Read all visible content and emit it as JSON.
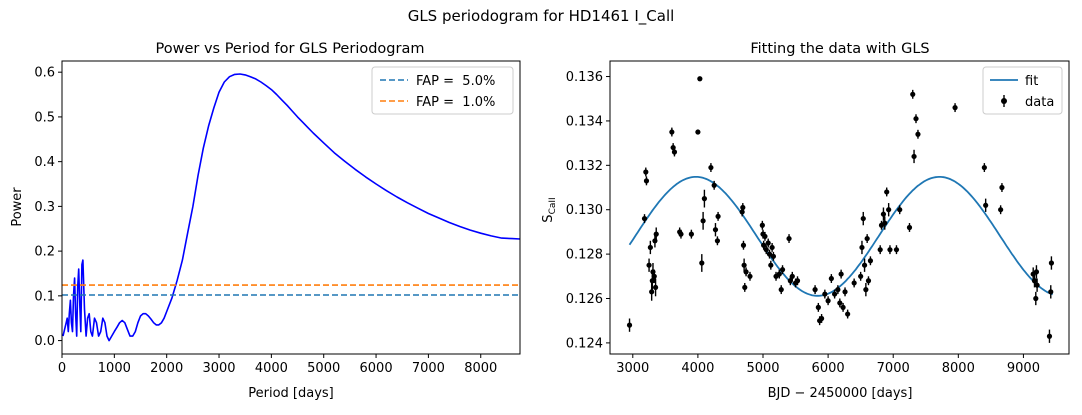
{
  "figure": {
    "suptitle": "GLS periodogram for HD1461 I_Call"
  },
  "chart_data": [
    {
      "type": "line",
      "title": "Power vs Period for GLS Periodogram",
      "xlabel": "Period [days]",
      "ylabel": "Power",
      "xlim": [
        0,
        8750
      ],
      "ylim": [
        -0.03,
        0.625
      ],
      "xticks": [
        0,
        1000,
        2000,
        3000,
        4000,
        5000,
        6000,
        7000,
        8000
      ],
      "yticks": [
        0.0,
        0.1,
        0.2,
        0.3,
        0.4,
        0.5,
        0.6
      ],
      "xtick_labels": [
        "0",
        "1000",
        "2000",
        "3000",
        "4000",
        "5000",
        "6000",
        "7000",
        "8000"
      ],
      "ytick_labels": [
        "0.0",
        "0.1",
        "0.2",
        "0.3",
        "0.4",
        "0.5",
        "0.6"
      ],
      "legend": "top-right",
      "series": [
        {
          "color": "#0000ff",
          "style": "solid",
          "x": [
            20,
            80,
            100,
            120,
            140,
            160,
            180,
            200,
            220,
            240,
            260,
            280,
            300,
            320,
            340,
            360,
            380,
            400,
            430,
            460,
            490,
            520,
            550,
            580,
            620,
            660,
            700,
            740,
            780,
            820,
            860,
            900,
            950,
            1000,
            1050,
            1100,
            1150,
            1200,
            1250,
            1300,
            1350,
            1400,
            1450,
            1500,
            1550,
            1600,
            1650,
            1700,
            1750,
            1800,
            1850,
            1900,
            1950,
            2000,
            2100,
            2200,
            2300,
            2400,
            2500,
            2600,
            2700,
            2800,
            2900,
            3000,
            3100,
            3200,
            3300,
            3400,
            3500,
            3600,
            3700,
            3800,
            3900,
            4000,
            4100,
            4200,
            4300,
            4400,
            4500,
            4600,
            4700,
            4800,
            5000,
            5200,
            5400,
            5600,
            5800,
            6000,
            6200,
            6400,
            6600,
            6800,
            7000,
            7200,
            7400,
            7600,
            7800,
            8000,
            8200,
            8400,
            8600,
            8750
          ],
          "values": [
            0.01,
            0.04,
            0.05,
            0.02,
            0.06,
            0.09,
            0.04,
            0.02,
            0.1,
            0.14,
            0.06,
            0.01,
            0.12,
            0.16,
            0.08,
            0.02,
            0.17,
            0.18,
            0.07,
            0.01,
            0.05,
            0.06,
            0.02,
            0.01,
            0.05,
            0.04,
            0.01,
            0.02,
            0.05,
            0.04,
            0.01,
            0.0,
            0.01,
            0.02,
            0.03,
            0.04,
            0.045,
            0.04,
            0.025,
            0.01,
            0.01,
            0.02,
            0.04,
            0.055,
            0.06,
            0.06,
            0.055,
            0.048,
            0.04,
            0.035,
            0.035,
            0.04,
            0.05,
            0.065,
            0.095,
            0.135,
            0.18,
            0.24,
            0.3,
            0.37,
            0.43,
            0.48,
            0.52,
            0.555,
            0.578,
            0.59,
            0.595,
            0.596,
            0.594,
            0.59,
            0.585,
            0.578,
            0.57,
            0.561,
            0.55,
            0.538,
            0.526,
            0.513,
            0.5,
            0.488,
            0.476,
            0.464,
            0.442,
            0.42,
            0.401,
            0.383,
            0.366,
            0.35,
            0.335,
            0.321,
            0.308,
            0.296,
            0.284,
            0.274,
            0.264,
            0.255,
            0.247,
            0.24,
            0.234,
            0.229,
            0.228,
            0.227
          ]
        },
        {
          "name": "FAP =  5.0%",
          "color": "#1f77b4",
          "style": "dashed",
          "x": [
            0,
            8750
          ],
          "values": [
            0.102,
            0.102
          ]
        },
        {
          "name": "FAP =  1.0%",
          "color": "#ff7f0e",
          "style": "dashed",
          "x": [
            0,
            8750
          ],
          "values": [
            0.124,
            0.124
          ]
        }
      ]
    },
    {
      "type": "scatter",
      "title": "Fitting the data with GLS",
      "xlabel": "BJD − 2450000 [days]",
      "ylabel_main": "S",
      "ylabel_sub": "CaII",
      "xlim": [
        2650,
        9700
      ],
      "ylim": [
        0.1235,
        0.1367
      ],
      "xticks": [
        3000,
        4000,
        5000,
        6000,
        7000,
        8000,
        9000
      ],
      "yticks": [
        0.124,
        0.126,
        0.128,
        0.13,
        0.132,
        0.134,
        0.136
      ],
      "xtick_labels": [
        "3000",
        "4000",
        "5000",
        "6000",
        "7000",
        "8000",
        "9000"
      ],
      "ytick_labels": [
        "0.124",
        "0.126",
        "0.128",
        "0.130",
        "0.132",
        "0.134",
        "0.136"
      ],
      "legend": "top-right",
      "fit": {
        "name": "fit",
        "color": "#1f77b4",
        "mean": 0.1288,
        "amplitude": 0.00268,
        "period_days": 3740,
        "phase_peak_x": 3970,
        "x_range": [
          2950,
          9450
        ]
      },
      "data": {
        "name": "data",
        "color": "#000000",
        "points": [
          [
            2950,
            0.1248,
            0.0003
          ],
          [
            3180,
            0.1296,
            0.0002
          ],
          [
            3200,
            0.1317,
            0.0002
          ],
          [
            3210,
            0.1313,
            0.0002
          ],
          [
            3250,
            0.1275,
            0.0003
          ],
          [
            3270,
            0.1283,
            0.0003
          ],
          [
            3290,
            0.1263,
            0.0004
          ],
          [
            3300,
            0.1268,
            0.0004
          ],
          [
            3310,
            0.1272,
            0.0004
          ],
          [
            3330,
            0.127,
            0.0003
          ],
          [
            3340,
            0.1286,
            0.0003
          ],
          [
            3350,
            0.1265,
            0.0004
          ],
          [
            3360,
            0.1289,
            0.0003
          ],
          [
            3600,
            0.1335,
            0.0002
          ],
          [
            3620,
            0.1328,
            0.0002
          ],
          [
            3640,
            0.1326,
            0.0002
          ],
          [
            3720,
            0.129,
            0.0002
          ],
          [
            3740,
            0.1289,
            0.0002
          ],
          [
            3900,
            0.1289,
            0.0002
          ],
          [
            4000,
            0.1335,
            0.0001
          ],
          [
            4030,
            0.1359,
            0.0001
          ],
          [
            4060,
            0.1276,
            0.0004
          ],
          [
            4080,
            0.1295,
            0.0004
          ],
          [
            4100,
            0.1305,
            0.0004
          ],
          [
            4200,
            0.1319,
            0.0002
          ],
          [
            4250,
            0.1311,
            0.0002
          ],
          [
            4270,
            0.1291,
            0.0003
          ],
          [
            4300,
            0.1286,
            0.0002
          ],
          [
            4310,
            0.1297,
            0.0002
          ],
          [
            4680,
            0.1299,
            0.0002
          ],
          [
            4690,
            0.1301,
            0.0002
          ],
          [
            4700,
            0.1284,
            0.0002
          ],
          [
            4710,
            0.1275,
            0.0003
          ],
          [
            4720,
            0.1265,
            0.0002
          ],
          [
            4740,
            0.1272,
            0.0002
          ],
          [
            4800,
            0.127,
            0.0002
          ],
          [
            4990,
            0.1293,
            0.0002
          ],
          [
            5000,
            0.1289,
            0.0002
          ],
          [
            5010,
            0.1284,
            0.0002
          ],
          [
            5030,
            0.1288,
            0.0002
          ],
          [
            5050,
            0.1282,
            0.0002
          ],
          [
            5080,
            0.1285,
            0.0002
          ],
          [
            5100,
            0.128,
            0.0002
          ],
          [
            5120,
            0.1275,
            0.0002
          ],
          [
            5140,
            0.1283,
            0.0002
          ],
          [
            5160,
            0.1279,
            0.0002
          ],
          [
            5200,
            0.127,
            0.0002
          ],
          [
            5250,
            0.1271,
            0.0002
          ],
          [
            5280,
            0.1264,
            0.0002
          ],
          [
            5300,
            0.1273,
            0.0002
          ],
          [
            5400,
            0.1287,
            0.0002
          ],
          [
            5420,
            0.1268,
            0.0002
          ],
          [
            5450,
            0.127,
            0.0002
          ],
          [
            5500,
            0.1267,
            0.0002
          ],
          [
            5530,
            0.1268,
            0.0002
          ],
          [
            5800,
            0.1264,
            0.0002
          ],
          [
            5850,
            0.1256,
            0.0002
          ],
          [
            5870,
            0.125,
            0.0002
          ],
          [
            5900,
            0.1251,
            0.0002
          ],
          [
            5950,
            0.1262,
            0.0002
          ],
          [
            6000,
            0.1259,
            0.0002
          ],
          [
            6050,
            0.1269,
            0.0002
          ],
          [
            6100,
            0.1262,
            0.0002
          ],
          [
            6150,
            0.1264,
            0.0002
          ],
          [
            6180,
            0.1258,
            0.0002
          ],
          [
            6200,
            0.1271,
            0.0002
          ],
          [
            6230,
            0.1256,
            0.0002
          ],
          [
            6260,
            0.1263,
            0.0002
          ],
          [
            6300,
            0.1253,
            0.0002
          ],
          [
            6400,
            0.1267,
            0.0002
          ],
          [
            6500,
            0.127,
            0.0002
          ],
          [
            6520,
            0.1283,
            0.0003
          ],
          [
            6540,
            0.1296,
            0.0003
          ],
          [
            6560,
            0.1275,
            0.0003
          ],
          [
            6580,
            0.1264,
            0.0003
          ],
          [
            6600,
            0.1287,
            0.0002
          ],
          [
            6620,
            0.1268,
            0.0002
          ],
          [
            6650,
            0.1277,
            0.0002
          ],
          [
            6800,
            0.1282,
            0.0002
          ],
          [
            6820,
            0.1293,
            0.0002
          ],
          [
            6850,
            0.1298,
            0.0003
          ],
          [
            6870,
            0.1294,
            0.0003
          ],
          [
            6900,
            0.1308,
            0.0002
          ],
          [
            6930,
            0.13,
            0.0003
          ],
          [
            6950,
            0.1282,
            0.0002
          ],
          [
            7050,
            0.1282,
            0.0002
          ],
          [
            7100,
            0.13,
            0.0002
          ],
          [
            7250,
            0.1292,
            0.0002
          ],
          [
            7300,
            0.1352,
            0.0002
          ],
          [
            7320,
            0.1324,
            0.0003
          ],
          [
            7350,
            0.1341,
            0.0002
          ],
          [
            7380,
            0.1334,
            0.0002
          ],
          [
            7950,
            0.1346,
            0.0002
          ],
          [
            8400,
            0.1319,
            0.0002
          ],
          [
            8420,
            0.1302,
            0.0003
          ],
          [
            8650,
            0.13,
            0.0002
          ],
          [
            8670,
            0.131,
            0.0002
          ],
          [
            9150,
            0.1271,
            0.0003
          ],
          [
            9170,
            0.1268,
            0.0003
          ],
          [
            9190,
            0.126,
            0.0003
          ],
          [
            9200,
            0.1272,
            0.0003
          ],
          [
            9210,
            0.1266,
            0.0003
          ],
          [
            9400,
            0.1243,
            0.0003
          ],
          [
            9420,
            0.1263,
            0.0003
          ],
          [
            9430,
            0.1276,
            0.0003
          ]
        ]
      }
    }
  ]
}
